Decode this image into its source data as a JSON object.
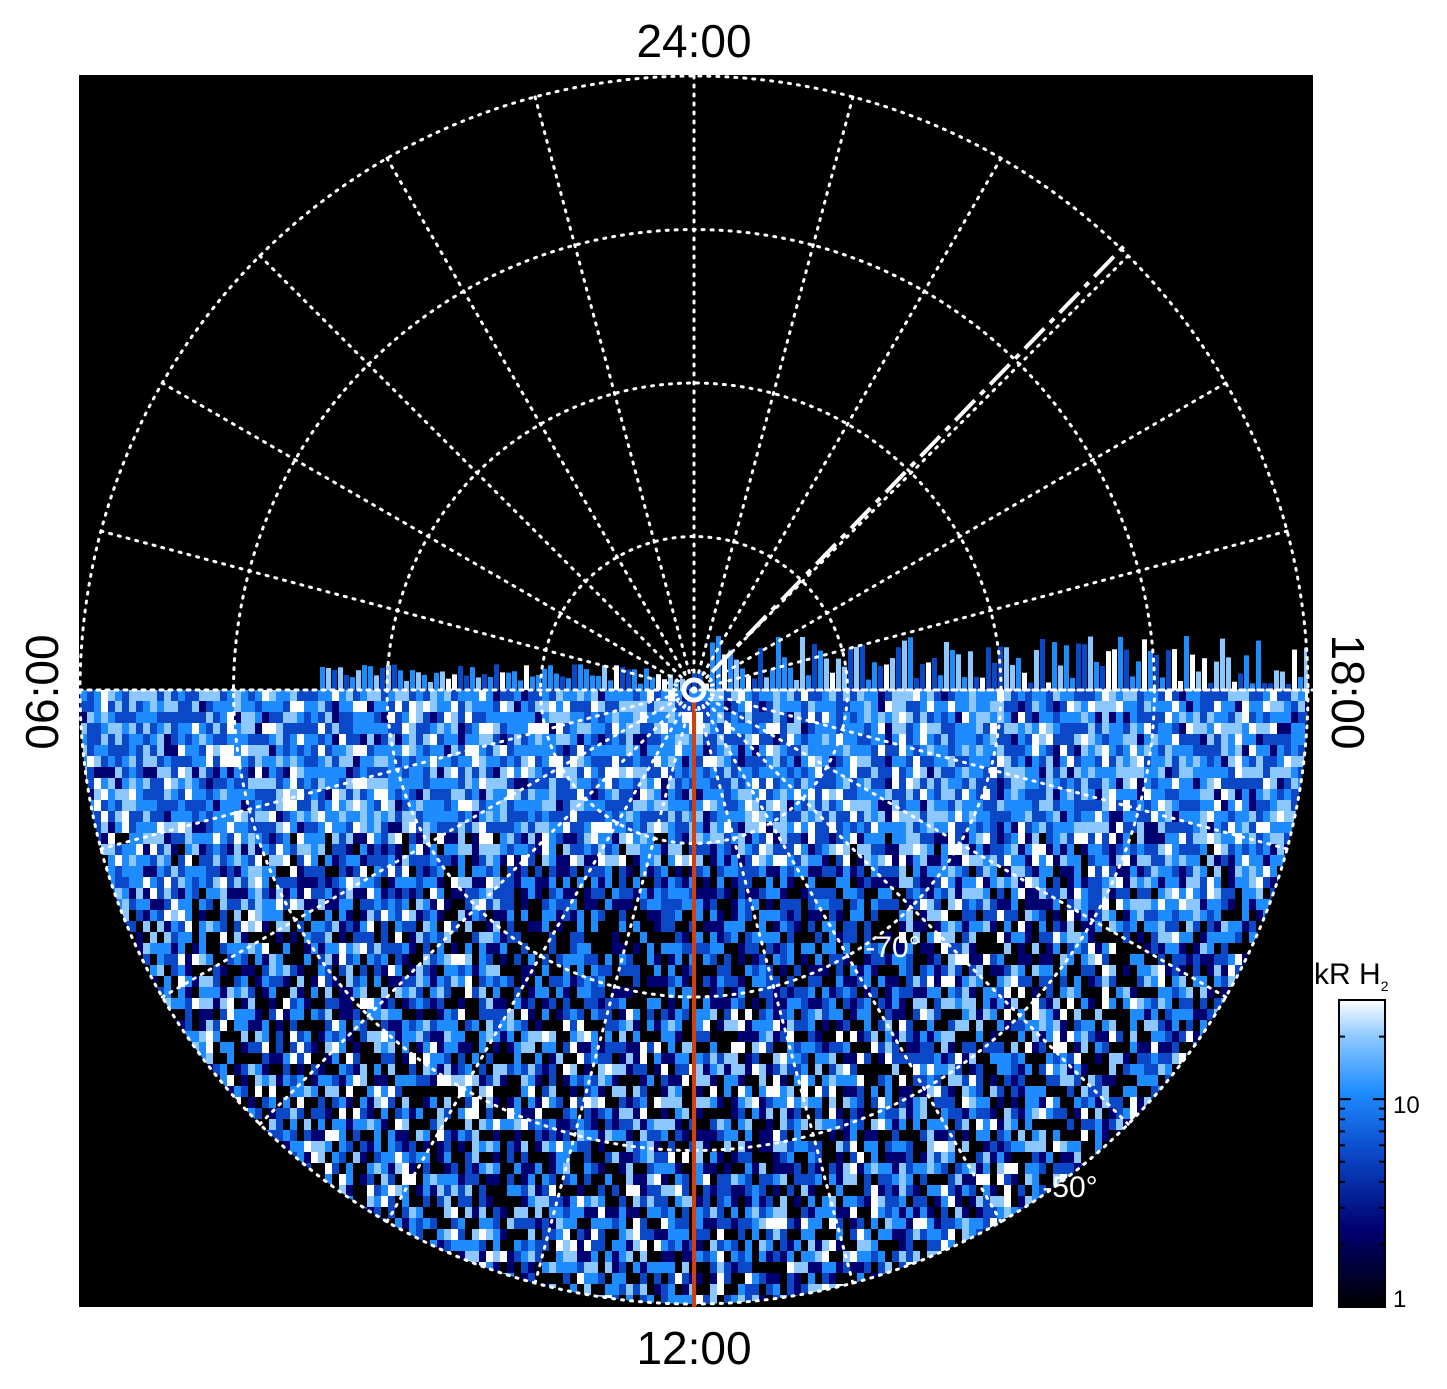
{
  "chart_data": {
    "type": "heatmap",
    "projection": "polar",
    "hemisphere": "south",
    "local_time_labels": {
      "top": "24:00",
      "bottom": "12:00",
      "left": "06:00",
      "right": "18:00"
    },
    "latitude_labels": [
      {
        "text": "-70°",
        "latitude": -70
      },
      {
        "text": "-50°",
        "latitude": -50
      }
    ],
    "latitude_circles": [
      -50,
      -60,
      -70,
      -80,
      -90
    ],
    "local_time_meridian_step_hours": 1,
    "colorbar": {
      "label": "kR",
      "label_suffix": "H",
      "label_subscript": "2",
      "scale": "log",
      "range": [
        1,
        30
      ],
      "ticks": [
        {
          "value": 1,
          "text": "1"
        },
        {
          "value": 10,
          "text": "10"
        }
      ]
    },
    "grid": "dotted-white",
    "colormap": [
      "#000000",
      "#000070",
      "#0a48c8",
      "#1e8cff",
      "#8cc8ff",
      "#ffffff"
    ],
    "highlight_meridian_color": "#d04010",
    "coverage": "southern (dayside) half filled, nightside black"
  }
}
